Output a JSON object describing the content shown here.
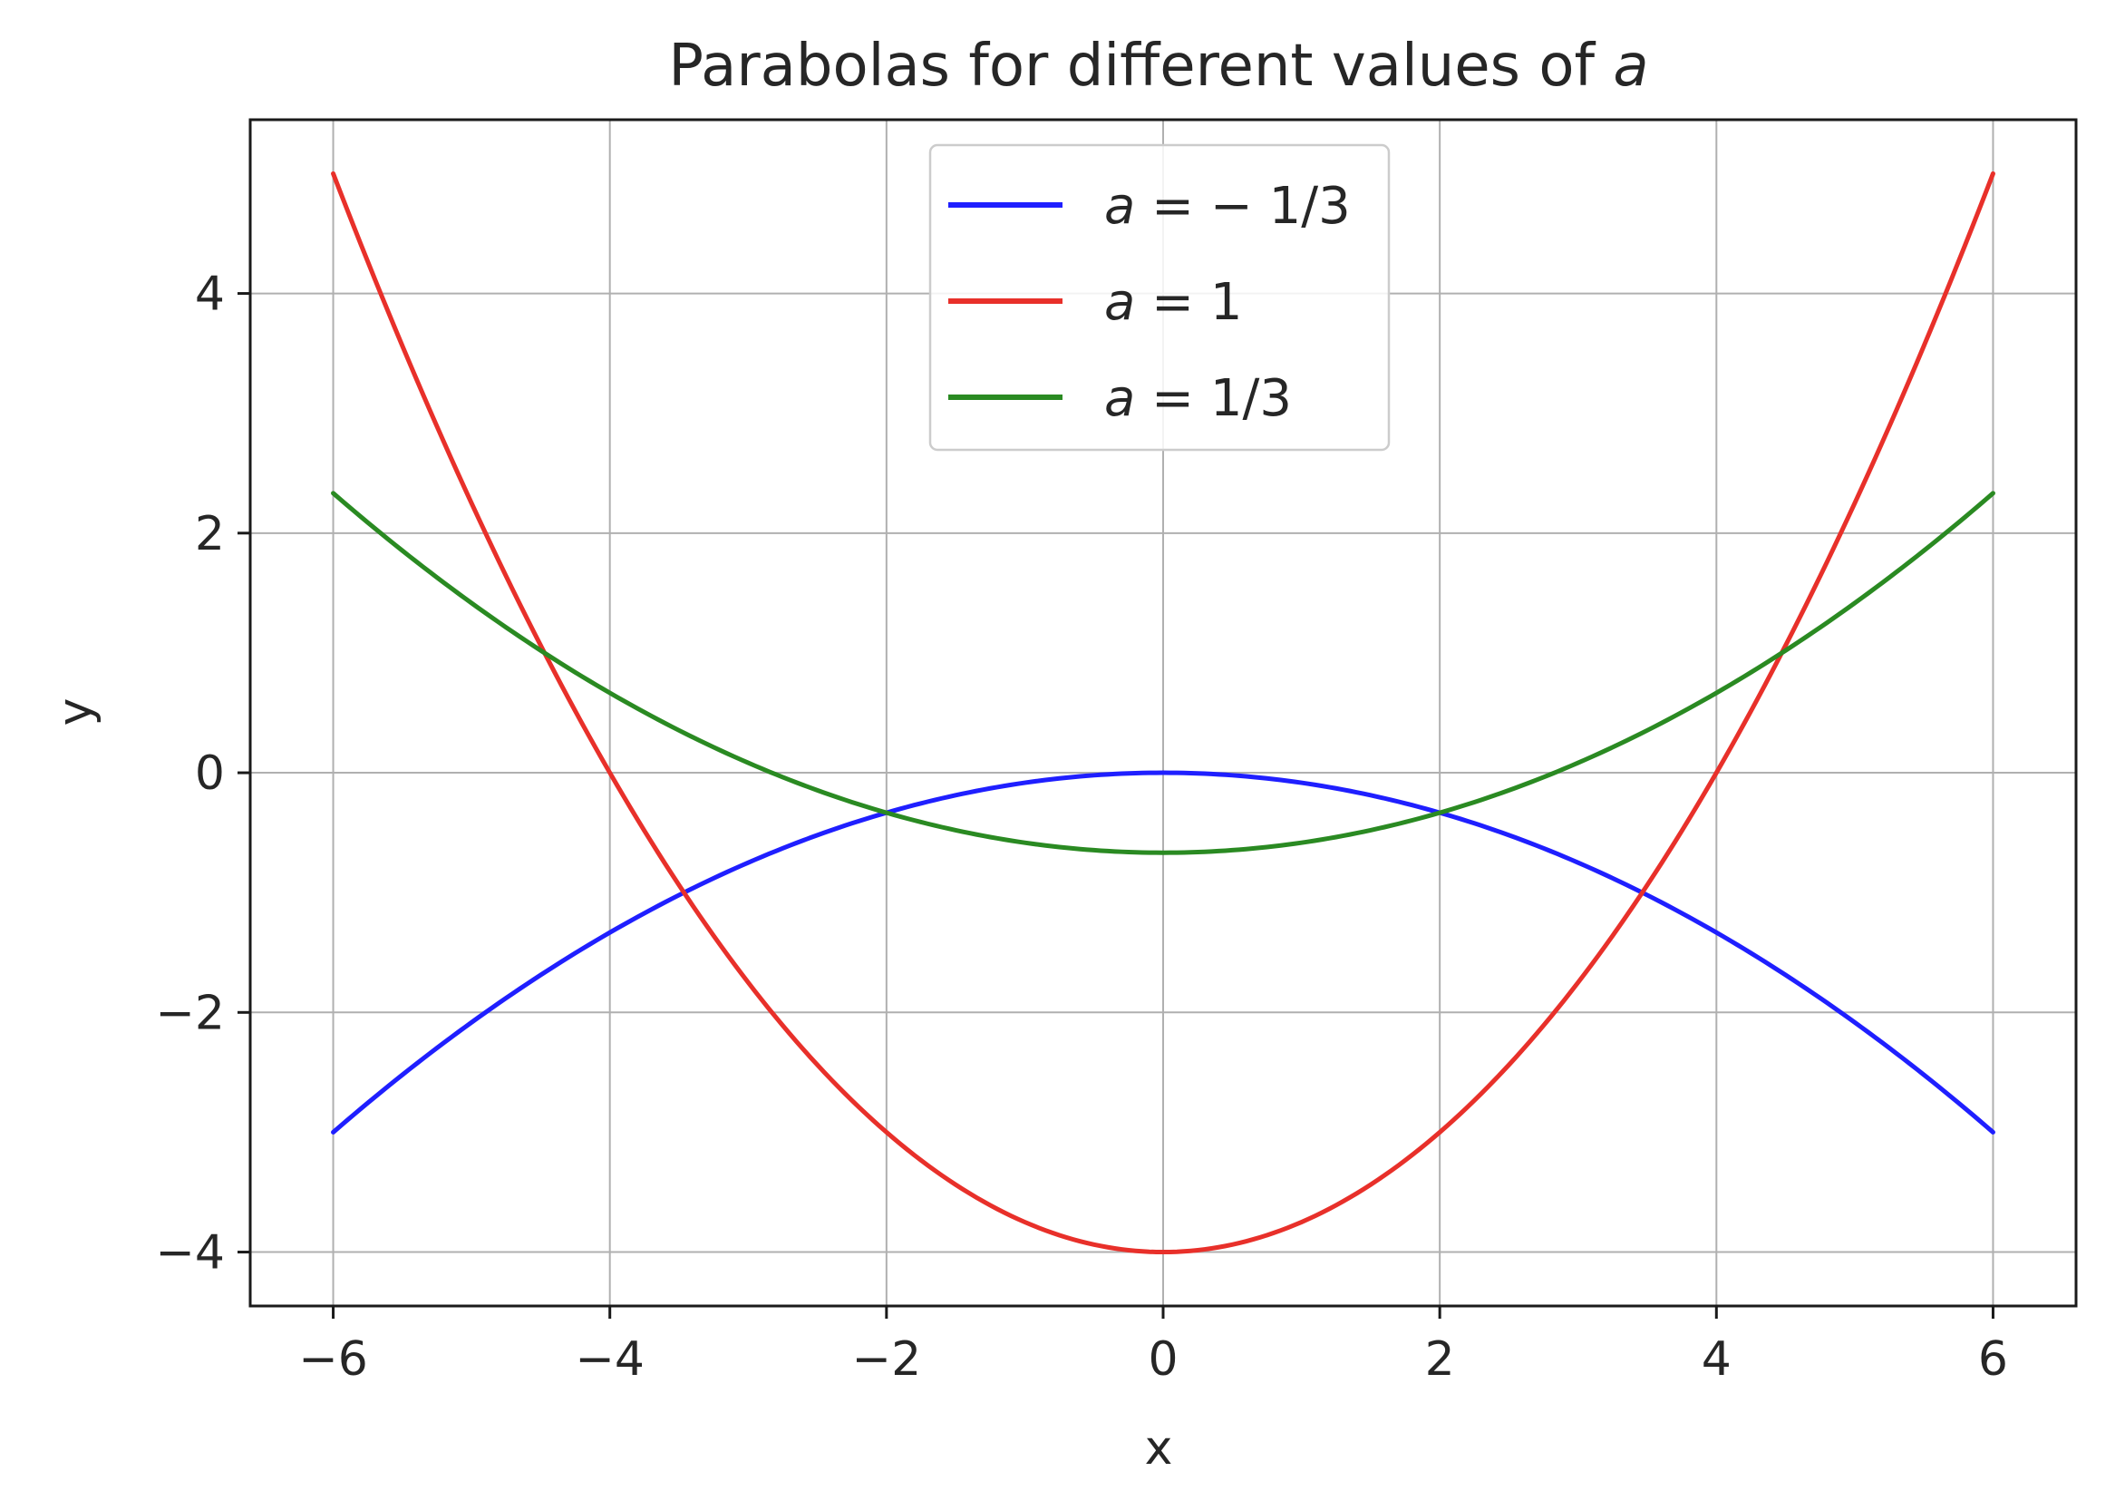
{
  "chart_data": {
    "type": "line",
    "title": "Parabolas for different values of",
    "title_variable": "a",
    "xlabel": "x",
    "ylabel": "y",
    "xlim": [
      -6.6,
      6.6
    ],
    "ylim": [
      -4.45,
      5.45
    ],
    "xticks": [
      -6,
      -4,
      -2,
      0,
      2,
      4,
      6
    ],
    "yticks": [
      -4,
      -2,
      0,
      2,
      4
    ],
    "xtick_labels": [
      "−6",
      "−4",
      "−2",
      "0",
      "2",
      "4",
      "6"
    ],
    "ytick_labels": [
      "−4",
      "−2",
      "0",
      "2",
      "4"
    ],
    "grid": true,
    "legend_position": "upper center",
    "x_range": [
      -6,
      6
    ],
    "series": [
      {
        "name": "a = −1/3",
        "name_var": "a",
        "name_rest": " = − 1/3",
        "color": "#1f1fff",
        "formula": "y = -(1/12) x^2",
        "points": [
          [
            -6,
            -3
          ],
          [
            -4,
            -1.333
          ],
          [
            -3,
            -0.75
          ],
          [
            -2,
            -0.333
          ],
          [
            0,
            0
          ],
          [
            2,
            -0.333
          ],
          [
            3,
            -0.75
          ],
          [
            4,
            -1.333
          ],
          [
            6,
            -3
          ]
        ]
      },
      {
        "name": "a = 1",
        "name_var": "a",
        "name_rest": " = 1",
        "color": "#e8302a",
        "formula": "y = (1/4) x^2 - 4",
        "points": [
          [
            -6,
            5
          ],
          [
            -4,
            0
          ],
          [
            -3,
            -1.75
          ],
          [
            -2,
            -3
          ],
          [
            0,
            -4
          ],
          [
            2,
            -3
          ],
          [
            3,
            -1.75
          ],
          [
            4,
            0
          ],
          [
            6,
            5
          ]
        ]
      },
      {
        "name": "a = 1/3",
        "name_var": "a",
        "name_rest": " = 1/3",
        "color": "#2a8a22",
        "formula": "y = (1/12) x^2 - 2/3",
        "points": [
          [
            -6,
            2.333
          ],
          [
            -4,
            0.667
          ],
          [
            -3,
            0.083
          ],
          [
            -2,
            -0.333
          ],
          [
            0,
            -0.667
          ],
          [
            2,
            -0.333
          ],
          [
            3,
            0.083
          ],
          [
            4,
            0.667
          ],
          [
            6,
            2.333
          ]
        ]
      }
    ]
  }
}
